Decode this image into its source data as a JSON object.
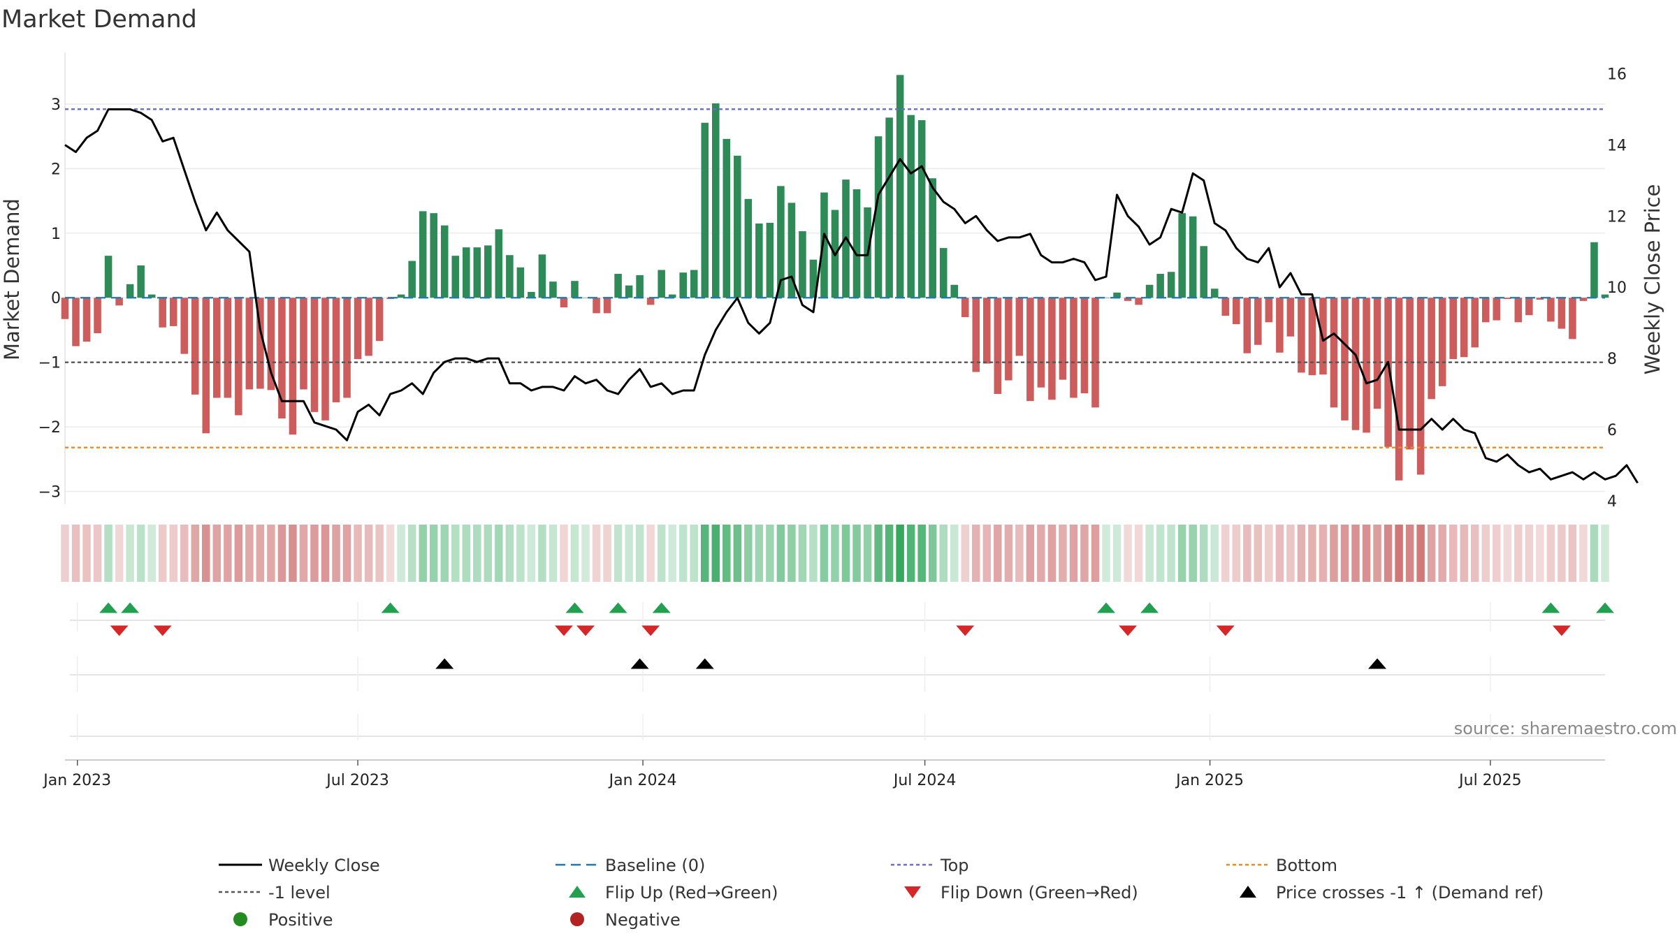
{
  "title": "Market Demand",
  "source_note": "source: sharemaestro.com",
  "colors": {
    "positive_bar": "#2e8b57",
    "negative_bar": "#cd5c5c",
    "price_line": "#000000",
    "baseline": "#1f77b4",
    "top_line": "#6a6ad0",
    "minus_one_line": "#555555",
    "bottom_line": "#ee8a1a",
    "flip_up": "#22a050",
    "flip_down": "#d62728",
    "price_cross": "#000000",
    "positive_dot": "#228b22",
    "negative_dot": "#b22222"
  },
  "chart_data": {
    "type": "bar",
    "title": "Market Demand",
    "ylabel_left": "Market Demand",
    "ylabel_right": "Weekly Close Price",
    "ylim_left": [
      -3.2,
      3.8
    ],
    "ylim_right": [
      3.9,
      16.6
    ],
    "yticks_left": [
      3,
      2,
      1,
      0,
      -1,
      -2,
      -3
    ],
    "ytick_labels_left": [
      "3",
      "2",
      "1",
      "0",
      "−1",
      "−2",
      "−3"
    ],
    "yticks_right": [
      16,
      14,
      12,
      10,
      8,
      6,
      4
    ],
    "ytick_labels_right": [
      "16",
      "14",
      "12",
      "10",
      "8",
      "6",
      "4"
    ],
    "x_start": "2022-12-24",
    "x_end": "2025-09-13",
    "x_ticks": [
      "2023-01-01",
      "2023-07-01",
      "2024-01-01",
      "2024-07-01",
      "2025-01-01",
      "2025-07-01"
    ],
    "x_tick_labels": [
      "Jan 2023",
      "Jul 2023",
      "Jan 2024",
      "Jul 2024",
      "Jan 2025",
      "Jul 2025"
    ],
    "weeks_start": "2022-12-24",
    "week_step_days": 7,
    "reference_levels": {
      "baseline": 0,
      "top": 2.92,
      "minus_one": -1,
      "bottom": -2.32
    },
    "demand": [
      -0.33,
      -0.75,
      -0.68,
      -0.55,
      0.65,
      -0.12,
      0.21,
      0.5,
      0.05,
      -0.46,
      -0.44,
      -0.87,
      -1.5,
      -2.1,
      -1.55,
      -1.55,
      -1.82,
      -1.42,
      -1.41,
      -1.43,
      -1.87,
      -2.12,
      -1.42,
      -1.77,
      -1.9,
      -1.62,
      -1.55,
      -0.95,
      -0.9,
      -0.67,
      -0.02,
      0.05,
      0.57,
      1.34,
      1.31,
      1.12,
      0.65,
      0.78,
      0.78,
      0.81,
      1.06,
      0.66,
      0.47,
      0.09,
      0.67,
      0.25,
      -0.15,
      0.26,
      0.0,
      -0.24,
      -0.24,
      0.37,
      0.19,
      0.35,
      -0.11,
      0.43,
      0.05,
      0.39,
      0.43,
      2.71,
      3.01,
      2.46,
      2.2,
      1.53,
      1.15,
      1.16,
      1.73,
      1.47,
      1.03,
      0.59,
      1.63,
      1.36,
      1.83,
      1.68,
      1.4,
      2.5,
      2.79,
      3.45,
      2.83,
      2.75,
      1.85,
      0.77,
      0.2,
      -0.3,
      -1.15,
      -1.02,
      -1.49,
      -1.28,
      -0.9,
      -1.6,
      -1.39,
      -1.58,
      -1.27,
      -1.55,
      -1.48,
      -1.7,
      0.0,
      0.08,
      -0.05,
      -0.11,
      0.2,
      0.37,
      0.4,
      1.31,
      1.26,
      0.8,
      0.14,
      -0.28,
      -0.41,
      -0.86,
      -0.73,
      -0.38,
      -0.85,
      -0.6,
      -1.16,
      -1.2,
      -1.19,
      -1.7,
      -1.9,
      -2.05,
      -2.09,
      -1.72,
      -2.31,
      -2.83,
      -2.35,
      -2.74,
      -1.57,
      -1.37,
      -0.95,
      -0.92,
      -0.77,
      -0.38,
      -0.35,
      -0.02,
      -0.38,
      -0.27,
      -0.03,
      -0.37,
      -0.48,
      -0.64,
      -0.05,
      0.86,
      0.05
    ],
    "price": [
      14.0,
      13.8,
      14.2,
      14.4,
      15.0,
      15.0,
      15.0,
      14.9,
      14.7,
      14.1,
      14.2,
      13.3,
      12.4,
      11.6,
      12.1,
      11.6,
      11.3,
      11.0,
      8.8,
      7.6,
      6.8,
      6.8,
      6.8,
      6.2,
      6.1,
      6.0,
      5.7,
      6.5,
      6.7,
      6.4,
      7.0,
      7.1,
      7.3,
      7.0,
      7.6,
      7.9,
      8.0,
      8.0,
      7.9,
      8.0,
      8.0,
      7.3,
      7.3,
      7.1,
      7.2,
      7.2,
      7.1,
      7.5,
      7.3,
      7.4,
      7.1,
      7.0,
      7.4,
      7.7,
      7.2,
      7.3,
      7.0,
      7.1,
      7.1,
      8.1,
      8.8,
      9.3,
      9.7,
      9.0,
      8.7,
      9.0,
      10.2,
      10.3,
      9.5,
      9.3,
      11.5,
      10.9,
      11.4,
      10.9,
      10.9,
      12.6,
      13.1,
      13.6,
      13.2,
      13.4,
      12.8,
      12.4,
      12.2,
      11.8,
      12.0,
      11.6,
      11.3,
      11.4,
      11.4,
      11.5,
      10.9,
      10.7,
      10.7,
      10.8,
      10.7,
      10.2,
      10.3,
      12.6,
      12.0,
      11.7,
      11.2,
      11.4,
      12.2,
      12.1,
      13.2,
      13.0,
      11.8,
      11.6,
      11.1,
      10.8,
      10.7,
      11.1,
      10.0,
      10.4,
      9.8,
      9.8,
      8.5,
      8.7,
      8.4,
      8.1,
      7.3,
      7.4,
      7.9,
      6.0,
      6.0,
      6.0,
      6.3,
      6.0,
      6.3,
      6.0,
      5.9,
      5.2,
      5.1,
      5.3,
      5.0,
      4.8,
      4.9,
      4.6,
      4.7,
      4.8,
      4.6,
      4.8,
      4.6,
      4.7,
      5.0,
      4.5
    ],
    "flip_up_weeks": [
      4,
      6,
      30,
      47,
      51,
      55,
      96,
      100,
      137,
      142
    ],
    "flip_down_weeks": [
      5,
      9,
      46,
      48,
      54,
      83,
      98,
      107,
      138
    ],
    "price_cross_weeks": [
      35,
      53,
      59,
      121
    ],
    "legend": [
      {
        "label": "Weekly Close",
        "marker": "line-solid",
        "color": "#000000"
      },
      {
        "label": "Baseline (0)",
        "marker": "line-dashed",
        "color": "#1f77b4"
      },
      {
        "label": "Top",
        "marker": "line-dotted",
        "color": "#6a6ad0"
      },
      {
        "label": "Bottom",
        "marker": "line-dotted",
        "color": "#ee8a1a"
      },
      {
        "label": "-1 level",
        "marker": "line-dotted",
        "color": "#555555"
      },
      {
        "label": "Flip Up (Red→Green)",
        "marker": "triangle-up",
        "color": "#22a050"
      },
      {
        "label": "Flip Down (Green→Red)",
        "marker": "triangle-down",
        "color": "#d62728"
      },
      {
        "label": "Price crosses -1 ↑ (Demand ref)",
        "marker": "triangle-up",
        "color": "#000000"
      },
      {
        "label": "Positive",
        "marker": "circle",
        "color": "#228b22"
      },
      {
        "label": "Negative",
        "marker": "circle",
        "color": "#b22222"
      }
    ],
    "grid": true,
    "legend_position": "bottom"
  }
}
